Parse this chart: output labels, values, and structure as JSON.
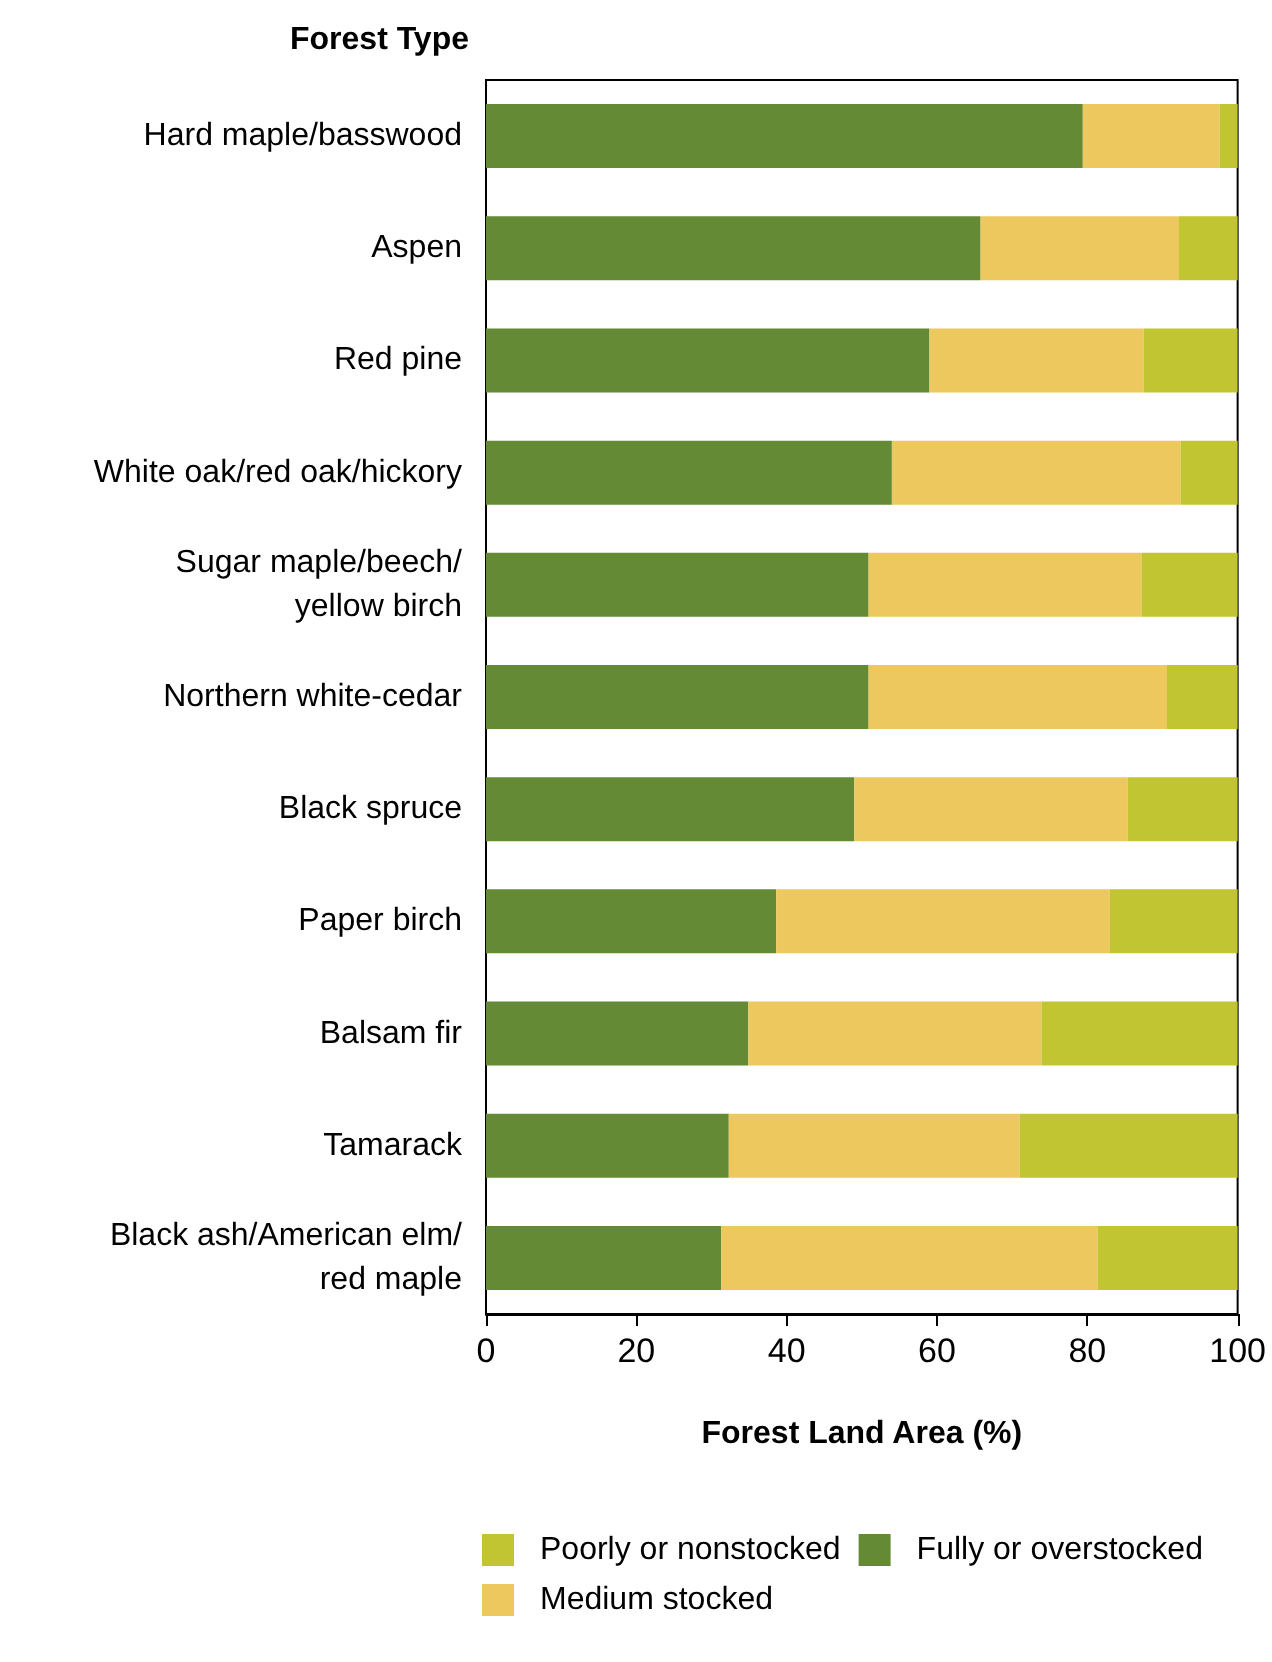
{
  "chart_data": {
    "type": "bar",
    "orientation": "horizontal",
    "stacked": true,
    "ylabel": "Forest Type",
    "xlabel": "Forest Land Area (%)",
    "categories": [
      "Hard maple/basswood",
      "Aspen",
      "Red pine",
      "White oak/red oak/hickory",
      "Sugar maple/beech/\nyellow birch",
      "Northern white-cedar",
      "Black spruce",
      "Paper birch",
      "Balsam fir",
      "Tamarack",
      "Black ash/American elm/\nred maple"
    ],
    "series": [
      {
        "name": "Fully or overstocked",
        "color": "#648a35",
        "values": [
          79.4,
          65.8,
          59.0,
          54.0,
          50.9,
          50.9,
          49.0,
          38.6,
          34.9,
          32.3,
          31.3
        ]
      },
      {
        "name": "Medium stocked",
        "color": "#edc85e",
        "values": [
          18.2,
          26.4,
          28.5,
          38.4,
          36.3,
          39.7,
          36.4,
          44.4,
          39.0,
          38.7,
          50.1
        ]
      },
      {
        "name": "Poorly or nonstocked",
        "color": "#c0c531",
        "values": [
          2.4,
          7.8,
          12.5,
          7.6,
          12.8,
          9.4,
          14.6,
          17.0,
          26.1,
          29.0,
          18.6
        ]
      }
    ],
    "xlim": [
      0,
      100
    ],
    "xticks": [
      0,
      20,
      40,
      60,
      80,
      100
    ],
    "grid": false,
    "legend": "bottom"
  }
}
